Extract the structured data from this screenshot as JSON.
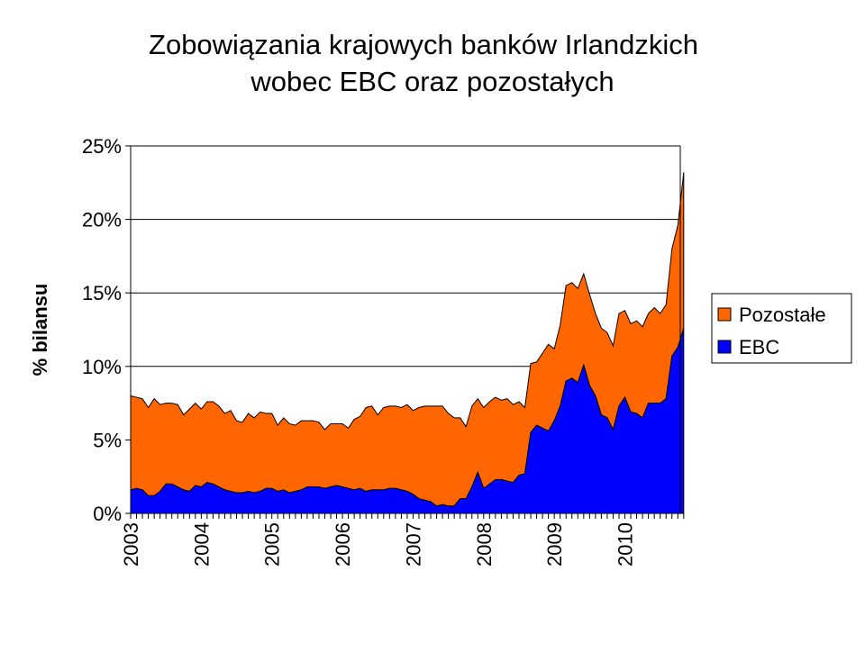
{
  "chart_data": {
    "type": "area",
    "stacked": true,
    "title_lines": [
      "Zobowiązania krajowych banków Irlandzkich",
      "wobec EBC oraz pozostałych"
    ],
    "xlabel": "",
    "ylabel": "% bilansu",
    "ylim": [
      0,
      25
    ],
    "yticks": [
      "0%",
      "5%",
      "10%",
      "15%",
      "20%",
      "25%"
    ],
    "ytick_values": [
      0,
      5,
      10,
      15,
      20,
      25
    ],
    "x_start": "2003-01",
    "x_frequency": "monthly",
    "xtick_labels": [
      "2003",
      "2004",
      "2005",
      "2006",
      "2007",
      "2008",
      "2009",
      "2010"
    ],
    "grid": true,
    "legend_position": "right",
    "series": [
      {
        "name": "Pozostałe",
        "color": "#ff6600",
        "values": [
          6.4,
          6.2,
          6.2,
          6.0,
          6.6,
          5.9,
          5.5,
          5.5,
          5.6,
          5.1,
          5.6,
          5.6,
          5.3,
          5.5,
          5.6,
          5.5,
          5.2,
          5.5,
          4.9,
          4.8,
          5.3,
          5.1,
          5.4,
          5.1,
          5.1,
          4.5,
          4.9,
          4.7,
          4.5,
          4.7,
          4.5,
          4.5,
          4.4,
          4.0,
          4.3,
          4.2,
          4.3,
          4.1,
          4.8,
          4.9,
          5.7,
          5.7,
          5.1,
          5.6,
          5.6,
          5.6,
          5.6,
          5.9,
          5.7,
          6.2,
          6.4,
          6.5,
          6.8,
          6.7,
          6.3,
          6.0,
          5.5,
          4.9,
          5.5,
          5.0,
          5.5,
          5.6,
          5.6,
          5.4,
          5.6,
          5.3,
          5.0,
          4.5,
          4.7,
          4.3,
          5.1,
          5.9,
          4.9,
          5.5,
          6.5,
          6.5,
          6.4,
          6.2,
          6.2,
          5.6,
          5.9,
          5.8,
          5.7,
          6.3,
          5.9,
          6.0,
          6.3,
          6.2,
          6.1,
          6.5,
          6.1,
          6.4,
          7.3,
          8.3,
          10.6
        ]
      },
      {
        "name": "EBC",
        "color": "#0000ff",
        "values": [
          1.6,
          1.7,
          1.6,
          1.2,
          1.2,
          1.5,
          2.0,
          2.0,
          1.8,
          1.6,
          1.5,
          1.9,
          1.8,
          2.1,
          2.0,
          1.8,
          1.6,
          1.5,
          1.4,
          1.4,
          1.5,
          1.4,
          1.5,
          1.7,
          1.7,
          1.5,
          1.6,
          1.4,
          1.5,
          1.6,
          1.8,
          1.8,
          1.8,
          1.7,
          1.8,
          1.9,
          1.8,
          1.7,
          1.6,
          1.7,
          1.5,
          1.6,
          1.6,
          1.6,
          1.7,
          1.7,
          1.6,
          1.5,
          1.3,
          1.0,
          0.9,
          0.8,
          0.5,
          0.6,
          0.5,
          0.5,
          1.0,
          1.0,
          1.8,
          2.8,
          1.7,
          2.0,
          2.3,
          2.3,
          2.2,
          2.1,
          2.6,
          2.7,
          5.5,
          6.0,
          5.8,
          5.6,
          6.3,
          7.3,
          9.0,
          9.2,
          8.9,
          10.1,
          8.7,
          8.0,
          6.7,
          6.5,
          5.7,
          7.3,
          7.9,
          6.9,
          6.8,
          6.5,
          7.5,
          7.5,
          7.5,
          7.8,
          10.7,
          11.3,
          12.6
        ]
      }
    ]
  }
}
